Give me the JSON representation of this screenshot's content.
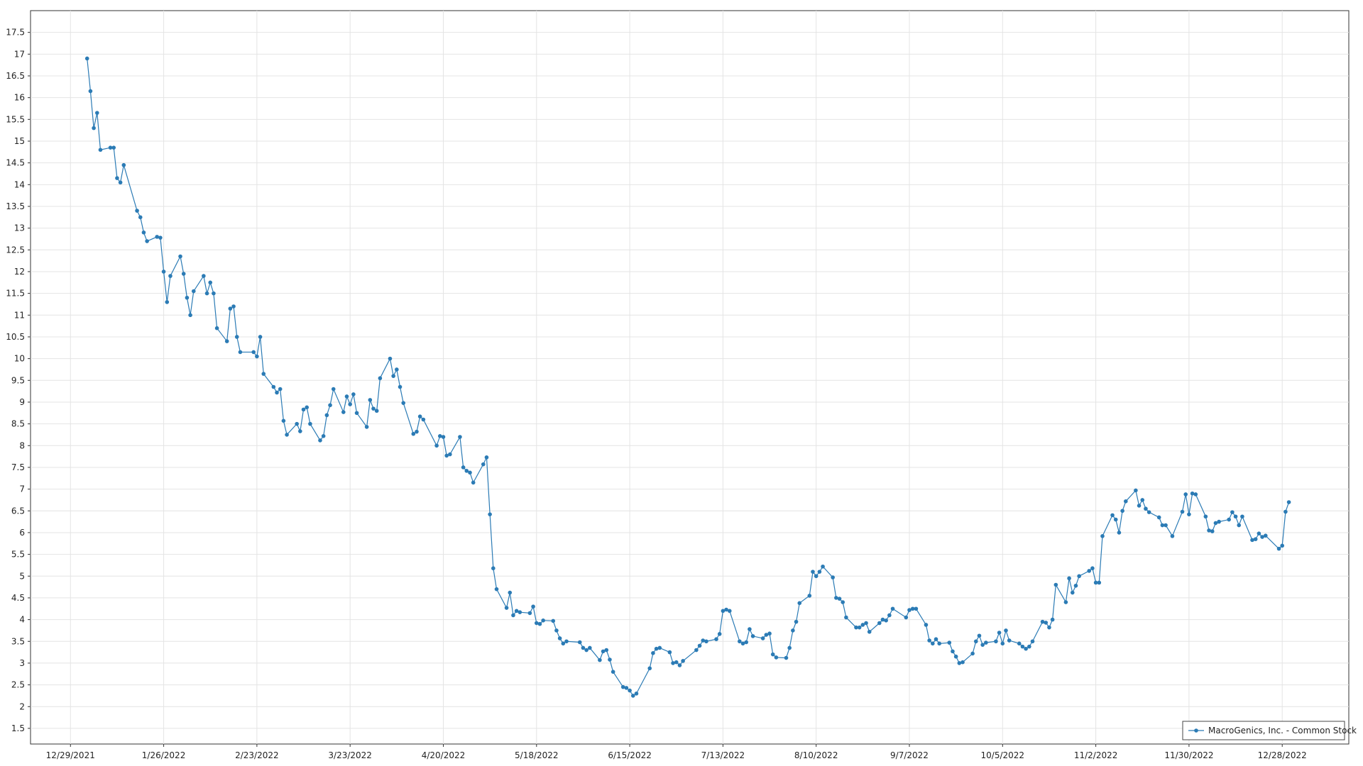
{
  "chart_data": {
    "type": "line",
    "legend": "lower right",
    "grid": true,
    "xlim": [
      "2021-12-17",
      "2023-01-17"
    ],
    "xticks": [
      {
        "value": "2021-12-29",
        "label": "12/29/2021"
      },
      {
        "value": "2022-01-26",
        "label": "1/26/2022"
      },
      {
        "value": "2022-02-23",
        "label": "2/23/2022"
      },
      {
        "value": "2022-03-23",
        "label": "3/23/2022"
      },
      {
        "value": "2022-04-20",
        "label": "4/20/2022"
      },
      {
        "value": "2022-05-18",
        "label": "5/18/2022"
      },
      {
        "value": "2022-06-15",
        "label": "6/15/2022"
      },
      {
        "value": "2022-07-13",
        "label": "7/13/2022"
      },
      {
        "value": "2022-08-10",
        "label": "8/10/2022"
      },
      {
        "value": "2022-09-07",
        "label": "9/7/2022"
      },
      {
        "value": "2022-10-05",
        "label": "10/5/2022"
      },
      {
        "value": "2022-11-02",
        "label": "11/2/2022"
      },
      {
        "value": "2022-11-30",
        "label": "11/30/2022"
      },
      {
        "value": "2022-12-28",
        "label": "12/28/2022"
      }
    ],
    "ylim": [
      1.14,
      18
    ],
    "yticks": [
      1.5,
      2,
      2.5,
      3,
      3.5,
      4,
      4.5,
      5,
      5.5,
      6,
      6.5,
      7,
      7.5,
      8,
      8.5,
      9,
      9.5,
      10,
      10.5,
      11,
      11.5,
      12,
      12.5,
      13,
      13.5,
      14,
      14.5,
      15,
      15.5,
      16,
      16.5,
      17,
      17.5
    ],
    "x": [
      "2022-01-03",
      "2022-01-04",
      "2022-01-05",
      "2022-01-06",
      "2022-01-07",
      "2022-01-10",
      "2022-01-11",
      "2022-01-12",
      "2022-01-13",
      "2022-01-14",
      "2022-01-18",
      "2022-01-19",
      "2022-01-20",
      "2022-01-21",
      "2022-01-24",
      "2022-01-25",
      "2022-01-26",
      "2022-01-27",
      "2022-01-28",
      "2022-01-31",
      "2022-02-01",
      "2022-02-02",
      "2022-02-03",
      "2022-02-04",
      "2022-02-07",
      "2022-02-08",
      "2022-02-09",
      "2022-02-10",
      "2022-02-11",
      "2022-02-14",
      "2022-02-15",
      "2022-02-16",
      "2022-02-17",
      "2022-02-18",
      "2022-02-22",
      "2022-02-23",
      "2022-02-24",
      "2022-02-25",
      "2022-02-28",
      "2022-03-01",
      "2022-03-02",
      "2022-03-03",
      "2022-03-04",
      "2022-03-07",
      "2022-03-08",
      "2022-03-09",
      "2022-03-10",
      "2022-03-11",
      "2022-03-14",
      "2022-03-15",
      "2022-03-16",
      "2022-03-17",
      "2022-03-18",
      "2022-03-21",
      "2022-03-22",
      "2022-03-23",
      "2022-03-24",
      "2022-03-25",
      "2022-03-28",
      "2022-03-29",
      "2022-03-30",
      "2022-03-31",
      "2022-04-01",
      "2022-04-04",
      "2022-04-05",
      "2022-04-06",
      "2022-04-07",
      "2022-04-08",
      "2022-04-11",
      "2022-04-12",
      "2022-04-13",
      "2022-04-14",
      "2022-04-18",
      "2022-04-19",
      "2022-04-20",
      "2022-04-21",
      "2022-04-22",
      "2022-04-25",
      "2022-04-26",
      "2022-04-27",
      "2022-04-28",
      "2022-04-29",
      "2022-05-02",
      "2022-05-03",
      "2022-05-04",
      "2022-05-05",
      "2022-05-06",
      "2022-05-09",
      "2022-05-10",
      "2022-05-11",
      "2022-05-12",
      "2022-05-13",
      "2022-05-16",
      "2022-05-17",
      "2022-05-18",
      "2022-05-19",
      "2022-05-20",
      "2022-05-23",
      "2022-05-24",
      "2022-05-25",
      "2022-05-26",
      "2022-05-27",
      "2022-05-31",
      "2022-06-01",
      "2022-06-02",
      "2022-06-03",
      "2022-06-06",
      "2022-06-07",
      "2022-06-08",
      "2022-06-09",
      "2022-06-10",
      "2022-06-13",
      "2022-06-14",
      "2022-06-15",
      "2022-06-16",
      "2022-06-17",
      "2022-06-21",
      "2022-06-22",
      "2022-06-23",
      "2022-06-24",
      "2022-06-27",
      "2022-06-28",
      "2022-06-29",
      "2022-06-30",
      "2022-07-01",
      "2022-07-05",
      "2022-07-06",
      "2022-07-07",
      "2022-07-08",
      "2022-07-11",
      "2022-07-12",
      "2022-07-13",
      "2022-07-14",
      "2022-07-15",
      "2022-07-18",
      "2022-07-19",
      "2022-07-20",
      "2022-07-21",
      "2022-07-22",
      "2022-07-25",
      "2022-07-26",
      "2022-07-27",
      "2022-07-28",
      "2022-07-29",
      "2022-08-01",
      "2022-08-02",
      "2022-08-03",
      "2022-08-04",
      "2022-08-05",
      "2022-08-08",
      "2022-08-09",
      "2022-08-10",
      "2022-08-11",
      "2022-08-12",
      "2022-08-15",
      "2022-08-16",
      "2022-08-17",
      "2022-08-18",
      "2022-08-19",
      "2022-08-22",
      "2022-08-23",
      "2022-08-24",
      "2022-08-25",
      "2022-08-26",
      "2022-08-29",
      "2022-08-30",
      "2022-08-31",
      "2022-09-01",
      "2022-09-02",
      "2022-09-06",
      "2022-09-07",
      "2022-09-08",
      "2022-09-09",
      "2022-09-12",
      "2022-09-13",
      "2022-09-14",
      "2022-09-15",
      "2022-09-16",
      "2022-09-19",
      "2022-09-20",
      "2022-09-21",
      "2022-09-22",
      "2022-09-23",
      "2022-09-26",
      "2022-09-27",
      "2022-09-28",
      "2022-09-29",
      "2022-09-30",
      "2022-10-03",
      "2022-10-04",
      "2022-10-05",
      "2022-10-06",
      "2022-10-07",
      "2022-10-10",
      "2022-10-11",
      "2022-10-12",
      "2022-10-13",
      "2022-10-14",
      "2022-10-17",
      "2022-10-18",
      "2022-10-19",
      "2022-10-20",
      "2022-10-21",
      "2022-10-24",
      "2022-10-25",
      "2022-10-26",
      "2022-10-27",
      "2022-10-28",
      "2022-10-31",
      "2022-11-01",
      "2022-11-02",
      "2022-11-03",
      "2022-11-04",
      "2022-11-07",
      "2022-11-08",
      "2022-11-09",
      "2022-11-10",
      "2022-11-11",
      "2022-11-14",
      "2022-11-15",
      "2022-11-16",
      "2022-11-17",
      "2022-11-18",
      "2022-11-21",
      "2022-11-22",
      "2022-11-23",
      "2022-11-25",
      "2022-11-28",
      "2022-11-29",
      "2022-11-30",
      "2022-12-01",
      "2022-12-02",
      "2022-12-05",
      "2022-12-06",
      "2022-12-07",
      "2022-12-08",
      "2022-12-09",
      "2022-12-12",
      "2022-12-13",
      "2022-12-14",
      "2022-12-15",
      "2022-12-16",
      "2022-12-19",
      "2022-12-20",
      "2022-12-21",
      "2022-12-22",
      "2022-12-23",
      "2022-12-27",
      "2022-12-28",
      "2022-12-29",
      "2022-12-30"
    ],
    "series": [
      {
        "name": "MacroGenics, Inc. - Common Stock",
        "color": "#2b7bb5",
        "values": [
          16.9,
          16.15,
          15.3,
          15.65,
          14.8,
          14.85,
          14.85,
          14.15,
          14.05,
          14.45,
          13.4,
          13.25,
          12.9,
          12.7,
          12.8,
          12.78,
          12.0,
          11.3,
          11.9,
          12.35,
          11.95,
          11.4,
          11.0,
          11.55,
          11.9,
          11.5,
          11.75,
          11.5,
          10.7,
          10.4,
          11.15,
          11.2,
          10.5,
          10.15,
          10.15,
          10.05,
          10.5,
          9.65,
          9.35,
          9.22,
          9.3,
          8.57,
          8.25,
          8.5,
          8.33,
          8.83,
          8.88,
          8.5,
          8.12,
          8.22,
          8.7,
          8.93,
          9.3,
          8.77,
          9.13,
          8.95,
          9.18,
          8.75,
          8.43,
          9.05,
          8.85,
          8.8,
          9.55,
          10.0,
          9.6,
          9.75,
          9.35,
          8.98,
          8.27,
          8.32,
          8.67,
          8.6,
          8.0,
          8.22,
          8.2,
          7.77,
          7.8,
          8.2,
          7.5,
          7.42,
          7.38,
          7.15,
          7.57,
          7.73,
          6.42,
          5.18,
          4.7,
          4.27,
          4.62,
          4.1,
          4.2,
          4.17,
          4.15,
          4.3,
          3.92,
          3.9,
          3.98,
          3.97,
          3.75,
          3.57,
          3.45,
          3.5,
          3.48,
          3.35,
          3.3,
          3.35,
          3.07,
          3.27,
          3.3,
          3.08,
          2.8,
          2.45,
          2.43,
          2.37,
          2.25,
          2.3,
          2.88,
          3.23,
          3.33,
          3.35,
          3.25,
          3.0,
          3.02,
          2.95,
          3.05,
          3.3,
          3.4,
          3.52,
          3.5,
          3.55,
          3.67,
          4.2,
          4.23,
          4.2,
          3.5,
          3.45,
          3.48,
          3.78,
          3.62,
          3.57,
          3.65,
          3.68,
          3.2,
          3.13,
          3.12,
          3.35,
          3.75,
          3.95,
          4.38,
          4.55,
          5.1,
          5.0,
          5.1,
          5.22,
          4.97,
          4.5,
          4.48,
          4.4,
          4.05,
          3.82,
          3.82,
          3.88,
          3.92,
          3.72,
          3.92,
          4.0,
          3.98,
          4.1,
          4.25,
          4.05,
          4.22,
          4.25,
          4.25,
          3.88,
          3.52,
          3.45,
          3.55,
          3.45,
          3.47,
          3.27,
          3.15,
          3.0,
          3.02,
          3.22,
          3.5,
          3.63,
          3.42,
          3.47,
          3.5,
          3.7,
          3.45,
          3.75,
          3.52,
          3.45,
          3.38,
          3.33,
          3.38,
          3.5,
          3.95,
          3.93,
          3.82,
          4.0,
          4.8,
          4.4,
          4.95,
          4.62,
          4.78,
          5.0,
          5.12,
          5.18,
          4.85,
          4.85,
          5.92,
          6.4,
          6.3,
          6.0,
          6.5,
          6.72,
          6.97,
          6.62,
          6.75,
          6.55,
          6.47,
          6.35,
          6.17,
          6.17,
          5.92,
          6.48,
          6.88,
          6.42,
          6.9,
          6.88,
          6.37,
          6.05,
          6.03,
          6.22,
          6.25,
          6.3,
          6.47,
          6.37,
          6.17,
          6.37,
          5.83,
          5.85,
          5.98,
          5.9,
          5.93,
          5.63,
          5.7,
          6.48,
          6.7
        ]
      }
    ]
  }
}
